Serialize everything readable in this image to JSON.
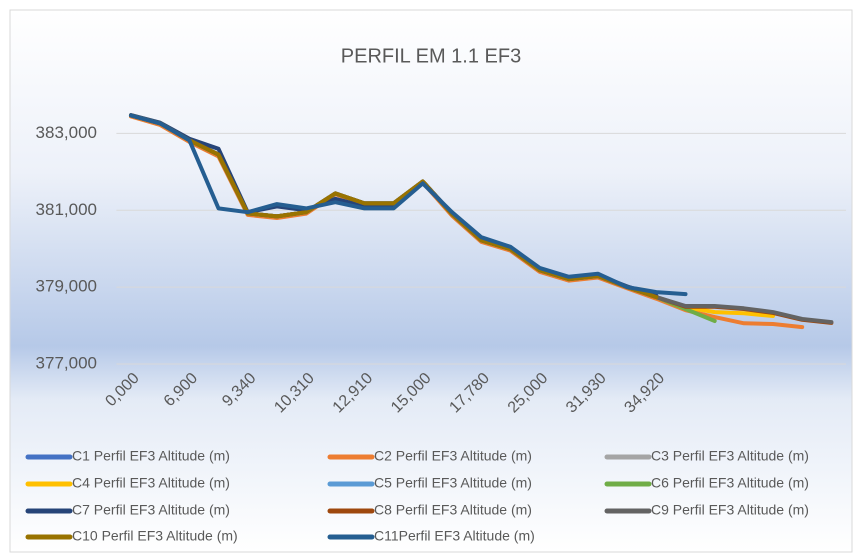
{
  "chart_data": {
    "type": "line",
    "title": "PERFIL EM 1.1 EF3",
    "categories": [
      "0,000",
      null,
      "6,900",
      null,
      "9,340",
      null,
      "10,310",
      null,
      "12,910",
      null,
      "15,000",
      null,
      "17,780",
      null,
      "25,000",
      null,
      "31,930",
      null,
      "34,920",
      null,
      null,
      null,
      null,
      null,
      null
    ],
    "ylim": [
      377,
      384
    ],
    "yticks": [
      {
        "value": 377,
        "label": "377,000"
      },
      {
        "value": 379,
        "label": "379,000"
      },
      {
        "value": 381,
        "label": "381,000"
      },
      {
        "value": 383,
        "label": "383,000"
      }
    ],
    "grid": true,
    "series": [
      {
        "name": "C1 Perfil EF3 Altitude (m)",
        "color": "#4472c4",
        "values": [
          383.47,
          383.26,
          382.82,
          382.45,
          380.92,
          380.84,
          380.95,
          381.44,
          381.18,
          381.18,
          381.75,
          380.9,
          380.22,
          379.99,
          379.44,
          379.21,
          379.29,
          379.0,
          378.74,
          null,
          null,
          null,
          null,
          null,
          null
        ]
      },
      {
        "name": "C2 Perfil EF3 Altitude (m)",
        "color": "#ed7d31",
        "values": [
          383.44,
          383.22,
          382.78,
          382.4,
          380.88,
          380.8,
          380.91,
          381.42,
          381.14,
          381.15,
          381.72,
          380.86,
          380.18,
          379.95,
          379.4,
          379.17,
          379.25,
          378.97,
          378.7,
          378.4,
          378.22,
          378.06,
          378.04,
          377.96,
          null
        ]
      },
      {
        "name": "C3 Perfil EF3 Altitude (m)",
        "color": "#a5a5a5",
        "values": [
          383.47,
          383.26,
          382.82,
          382.45,
          380.92,
          380.84,
          380.95,
          381.44,
          381.18,
          381.18,
          381.75,
          380.9,
          380.22,
          379.99,
          379.44,
          379.21,
          379.29,
          379.0,
          378.74,
          null,
          null,
          null,
          null,
          null,
          null
        ]
      },
      {
        "name": "C4 Perfil EF3 Altitude (m)",
        "color": "#ffc000",
        "values": [
          383.47,
          383.26,
          382.82,
          382.45,
          380.92,
          380.84,
          380.95,
          381.44,
          381.18,
          381.18,
          381.75,
          380.9,
          380.22,
          379.99,
          379.44,
          379.21,
          379.29,
          379.0,
          378.74,
          378.48,
          378.35,
          378.32,
          378.25,
          null,
          null
        ]
      },
      {
        "name": "C5 Perfil EF3 Altitude (m)",
        "color": "#5b9bd5",
        "values": [
          383.47,
          383.26,
          382.82,
          382.45,
          380.92,
          380.84,
          380.95,
          381.44,
          381.18,
          381.18,
          381.75,
          380.9,
          380.22,
          379.99,
          379.44,
          379.21,
          379.29,
          379.0,
          378.74,
          null,
          null,
          null,
          null,
          null,
          null
        ]
      },
      {
        "name": "C6 Perfil EF3 Altitude (m)",
        "color": "#70ad47",
        "values": [
          383.47,
          383.26,
          382.82,
          382.45,
          380.92,
          380.84,
          380.95,
          381.44,
          381.18,
          381.18,
          381.75,
          380.9,
          380.22,
          379.99,
          379.44,
          379.21,
          379.29,
          379.0,
          378.74,
          378.43,
          378.12,
          null,
          null,
          null,
          null
        ]
      },
      {
        "name": "C7 Perfil EF3 Altitude (m)",
        "color": "#264478",
        "values": [
          383.48,
          383.28,
          382.86,
          382.6,
          380.95,
          381.1,
          381.0,
          381.3,
          381.1,
          381.1,
          381.75,
          380.92,
          380.25,
          380.0,
          379.46,
          379.24,
          379.31,
          379.02,
          378.78,
          null,
          null,
          null,
          null,
          null,
          null
        ]
      },
      {
        "name": "C8 Perfil EF3 Altitude (m)",
        "color": "#9e480e",
        "values": [
          383.47,
          383.26,
          382.82,
          382.45,
          380.92,
          380.84,
          380.95,
          381.44,
          381.18,
          381.18,
          381.75,
          380.9,
          380.22,
          379.99,
          379.44,
          379.21,
          379.29,
          379.0,
          378.74,
          378.49,
          378.49,
          378.43,
          378.33,
          378.15,
          378.07
        ]
      },
      {
        "name": "C9 Perfil EF3 Altitude (m)",
        "color": "#636363",
        "values": [
          383.47,
          383.26,
          382.82,
          382.45,
          380.92,
          380.84,
          380.95,
          381.44,
          381.18,
          381.18,
          381.75,
          380.9,
          380.22,
          379.99,
          379.44,
          379.21,
          379.29,
          379.0,
          378.74,
          378.51,
          378.51,
          378.45,
          378.35,
          378.17,
          378.09
        ]
      },
      {
        "name": "C10 Perfil EF3 Altitude (m)",
        "color": "#997300",
        "values": [
          383.47,
          383.26,
          382.82,
          382.45,
          380.92,
          380.84,
          380.95,
          381.44,
          381.18,
          381.18,
          381.75,
          380.9,
          380.22,
          379.99,
          379.44,
          379.21,
          379.29,
          379.0,
          378.74,
          null,
          null,
          null,
          null,
          null,
          null
        ]
      },
      {
        "name": "C11Perfil EF3 Altitude (m)",
        "color": "#255e91",
        "values": [
          383.47,
          383.26,
          382.82,
          381.05,
          380.95,
          381.16,
          381.05,
          381.21,
          381.05,
          381.05,
          381.7,
          380.95,
          380.3,
          380.05,
          379.5,
          379.27,
          379.35,
          379.0,
          378.87,
          378.82,
          null,
          null,
          null,
          null,
          null
        ]
      }
    ]
  }
}
